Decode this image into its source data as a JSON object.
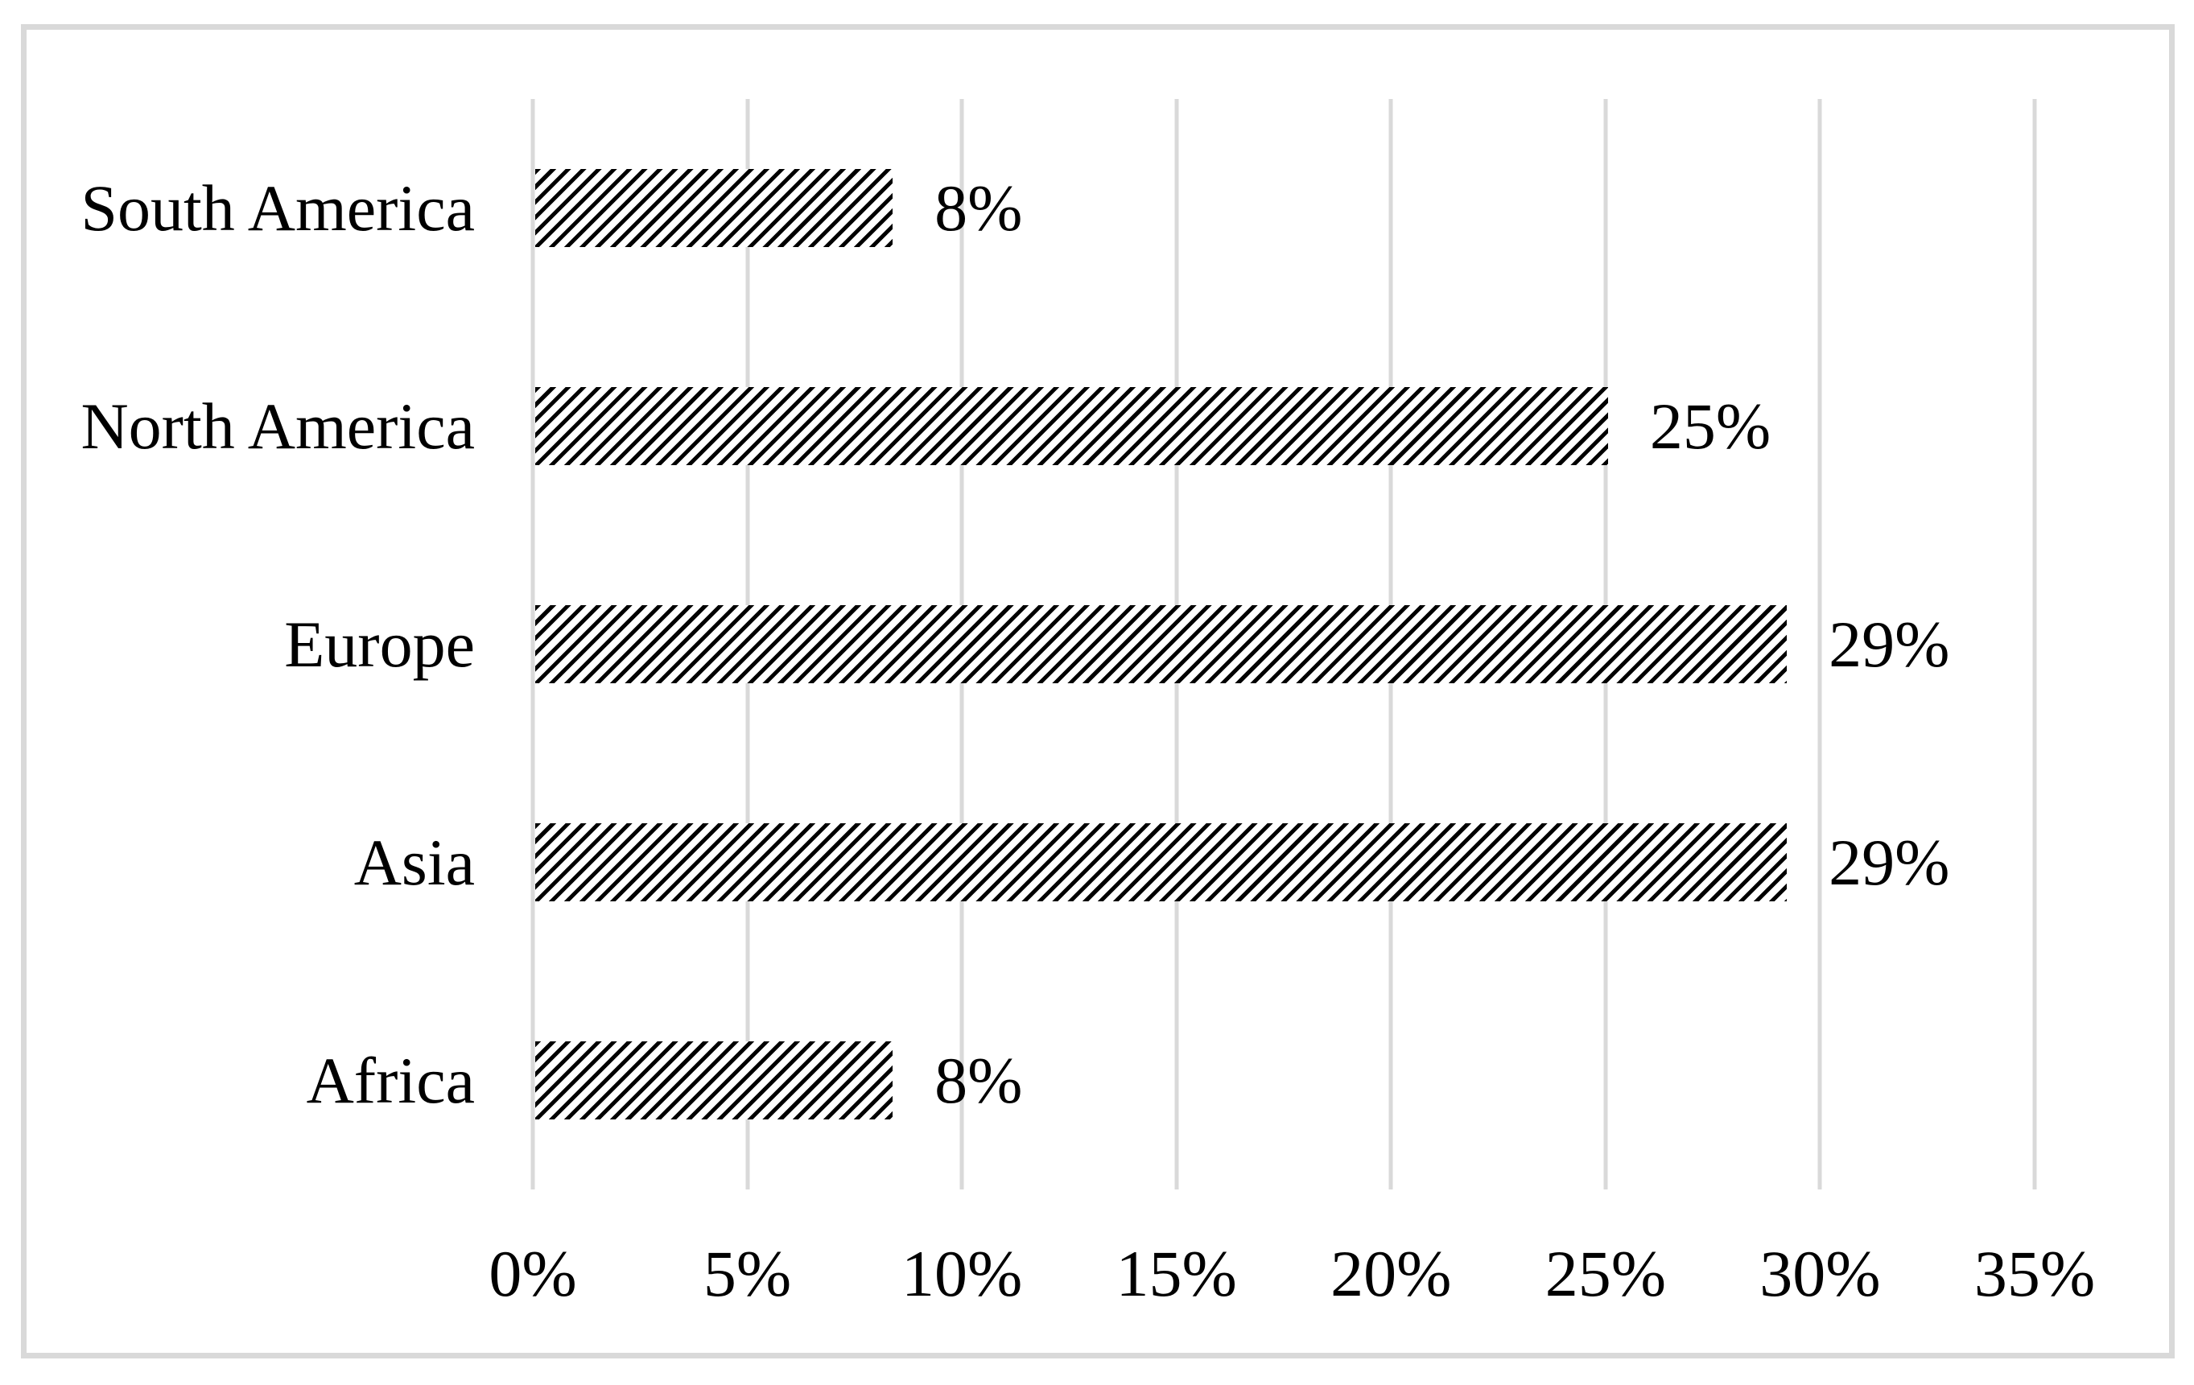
{
  "chart_data": {
    "type": "bar",
    "orientation": "horizontal",
    "title": "",
    "xlabel": "",
    "ylabel": "",
    "categories": [
      "South America",
      "North America",
      "Europe",
      "Asia",
      "Africa"
    ],
    "values": [
      8.33,
      25,
      29.17,
      29.17,
      8.33
    ],
    "data_labels": [
      "8%",
      "25%",
      "29%",
      "29%",
      "8%"
    ],
    "x_ticks": [
      "0%",
      "5%",
      "10%",
      "15%",
      "20%",
      "25%",
      "30%",
      "35%"
    ],
    "x_tick_values": [
      0,
      5,
      10,
      15,
      20,
      25,
      30,
      35
    ],
    "xlim": [
      0,
      35
    ],
    "grid": "vertical-gridlines-on",
    "legend": "none",
    "bar_fill": "black-diagonal-hatch-upward",
    "colors": {
      "hatch": "#000000",
      "bar_background": "#ffffff",
      "gridline": "#d9d9d9",
      "frame_border": "#d9d9d9",
      "text": "#000000",
      "background": "#ffffff"
    }
  }
}
